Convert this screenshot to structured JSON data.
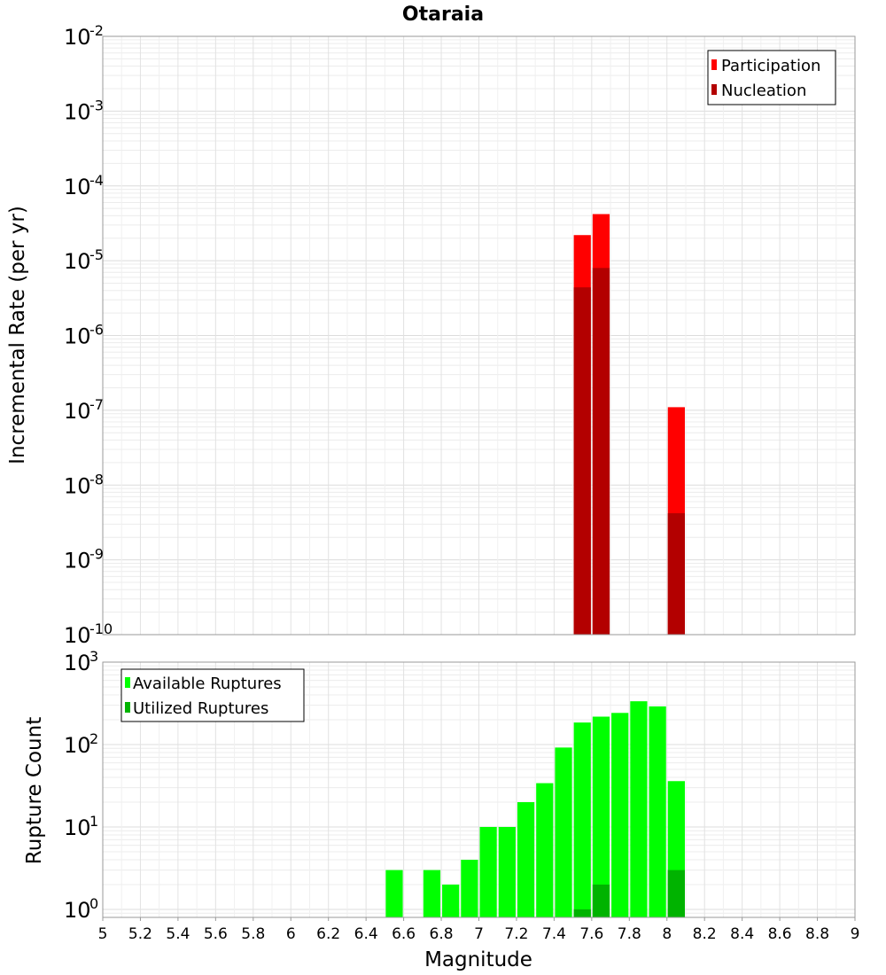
{
  "chart_data": [
    {
      "type": "bar",
      "title": "Otaraia",
      "xlabel": "",
      "ylabel": "Incremental Rate (per yr)",
      "yscale": "log",
      "ylim": [
        1e-10,
        0.01
      ],
      "xlim": [
        5,
        9
      ],
      "bar_width": 0.1,
      "ytick_exponents": [
        "-2",
        "-3",
        "-4",
        "-5",
        "-6",
        "-7",
        "-8",
        "-9",
        "-10"
      ],
      "legend_position": "top-right",
      "series": [
        {
          "name": "Participation",
          "color": "#ff0000",
          "points": [
            {
              "x": 7.55,
              "y": 2.2e-05
            },
            {
              "x": 7.65,
              "y": 4.2e-05
            },
            {
              "x": 8.05,
              "y": 1.1e-07
            }
          ]
        },
        {
          "name": "Nucleation",
          "color": "#b30000",
          "points": [
            {
              "x": 7.55,
              "y": 4.4e-06
            },
            {
              "x": 7.65,
              "y": 8e-06
            },
            {
              "x": 8.05,
              "y": 4.2e-09
            }
          ]
        }
      ]
    },
    {
      "type": "bar",
      "xlabel": "Magnitude",
      "ylabel": "Rupture Count",
      "yscale": "log",
      "ylim": [
        0.8,
        1000
      ],
      "xlim": [
        5,
        9
      ],
      "bar_width": 0.1,
      "ytick_exponents": [
        "3",
        "2",
        "1",
        "0"
      ],
      "xticks": [
        "5",
        "5.2",
        "5.4",
        "5.6",
        "5.8",
        "6",
        "6.2",
        "6.4",
        "6.6",
        "6.8",
        "7",
        "7.2",
        "7.4",
        "7.6",
        "7.8",
        "8",
        "8.2",
        "8.4",
        "8.6",
        "8.8",
        "9"
      ],
      "legend_position": "top-left",
      "series": [
        {
          "name": "Available Ruptures",
          "color": "#00ff00",
          "points": [
            {
              "x": 6.55,
              "y": 3
            },
            {
              "x": 6.75,
              "y": 3
            },
            {
              "x": 6.85,
              "y": 2
            },
            {
              "x": 6.95,
              "y": 4
            },
            {
              "x": 7.05,
              "y": 10
            },
            {
              "x": 7.15,
              "y": 10
            },
            {
              "x": 7.25,
              "y": 20
            },
            {
              "x": 7.35,
              "y": 34
            },
            {
              "x": 7.45,
              "y": 92
            },
            {
              "x": 7.55,
              "y": 185
            },
            {
              "x": 7.65,
              "y": 218
            },
            {
              "x": 7.75,
              "y": 242
            },
            {
              "x": 7.85,
              "y": 335
            },
            {
              "x": 7.95,
              "y": 290
            },
            {
              "x": 8.05,
              "y": 36
            }
          ]
        },
        {
          "name": "Utilized Ruptures",
          "color": "#00b300",
          "points": [
            {
              "x": 7.55,
              "y": 1
            },
            {
              "x": 7.65,
              "y": 2
            },
            {
              "x": 8.05,
              "y": 3
            }
          ]
        }
      ]
    }
  ]
}
